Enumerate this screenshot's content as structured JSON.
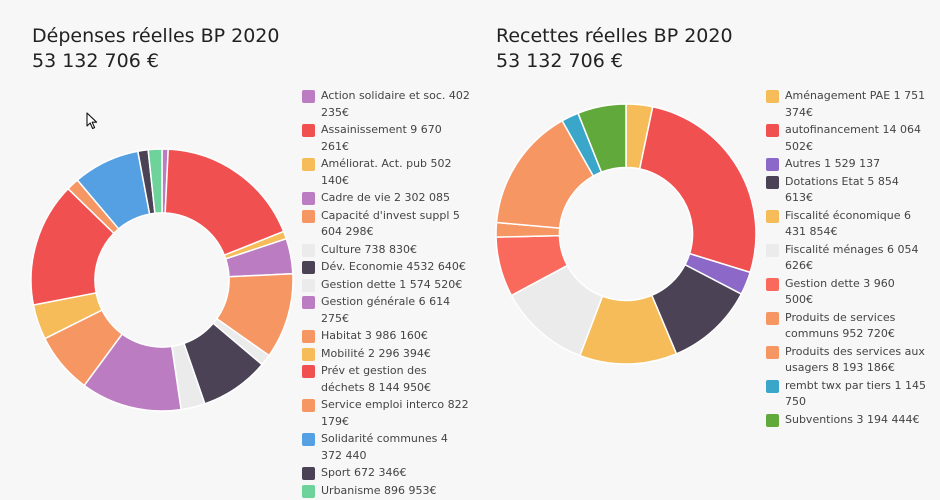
{
  "chart_data": [
    {
      "type": "pie",
      "title": "Dépenses réelles BP 2020",
      "subtitle": "53 132 706 €",
      "series": [
        {
          "label": "Action solidaire et soc. 402 235€",
          "value": 402235,
          "color": "#bb7cc2"
        },
        {
          "label": "Assainissement 9 670 261€",
          "value": 9670261,
          "color": "#f15050"
        },
        {
          "label": "Améliorat. Act. pub 502 140€",
          "value": 502140,
          "color": "#f6bc5a"
        },
        {
          "label": "Cadre de vie 2 302 085",
          "value": 2302085,
          "color": "#bb7cc2"
        },
        {
          "label": "Capacité d'invest suppl 5 604 298€",
          "value": 5604298,
          "color": "#f69663"
        },
        {
          "label": "Culture 738 830€",
          "value": 738830,
          "color": "#ebebeb"
        },
        {
          "label": "Dév. Economie 4532 640€",
          "value": 4532640,
          "color": "#4b4256"
        },
        {
          "label": "Gestion dette 1 574 520€",
          "value": 1574520,
          "color": "#ebebeb"
        },
        {
          "label": "Gestion générale 6 614 275€",
          "value": 6614275,
          "color": "#bb7cc2"
        },
        {
          "label": "Habitat 3 986 160€",
          "value": 3986160,
          "color": "#f69663"
        },
        {
          "label": "Mobilité 2 296 394€",
          "value": 2296394,
          "color": "#f6bc5a"
        },
        {
          "label": "Prév et gestion des déchets 8 144 950€",
          "value": 8144950,
          "color": "#f15050"
        },
        {
          "label": "Service emploi interco 822 179€",
          "value": 822179,
          "color": "#f69663"
        },
        {
          "label": "Solidarité communes 4 372 440",
          "value": 4372440,
          "color": "#55a0e2"
        },
        {
          "label": "Sport 672 346€",
          "value": 672346,
          "color": "#4b4256"
        },
        {
          "label": "Urbanisme 896 953€",
          "value": 896953,
          "color": "#6dd39b"
        }
      ]
    },
    {
      "type": "pie",
      "title": "Recettes réelles BP 2020",
      "subtitle": "53 132 706 €",
      "series": [
        {
          "label": "Aménagement PAE 1 751 374€",
          "value": 1751374,
          "color": "#f6bc5a"
        },
        {
          "label": "autofinancement 14 064 502€",
          "value": 14064502,
          "color": "#f15050"
        },
        {
          "label": "Autres 1 529 137",
          "value": 1529137,
          "color": "#8c68c9"
        },
        {
          "label": "Dotations Etat 5 854 613€",
          "value": 5854613,
          "color": "#4b4256"
        },
        {
          "label": "Fiscalité économique 6 431 854€",
          "value": 6431854,
          "color": "#f6bc5a"
        },
        {
          "label": "Fiscalité ménages 6 054 626€",
          "value": 6054626,
          "color": "#ebebeb"
        },
        {
          "label": "Gestion dette 3 960 500€",
          "value": 3960500,
          "color": "#fa6a5c"
        },
        {
          "label": "Produits de services communs 952 720€",
          "value": 952720,
          "color": "#f69663"
        },
        {
          "label": "Produits des services aux usagers 8 193 186€",
          "value": 8193186,
          "color": "#f69663"
        },
        {
          "label": "rembt twx par tiers 1 145 750",
          "value": 1145750,
          "color": "#3aa6c9"
        },
        {
          "label": "Subventions 3 194 444€",
          "value": 3194444,
          "color": "#62a93b"
        }
      ]
    }
  ]
}
